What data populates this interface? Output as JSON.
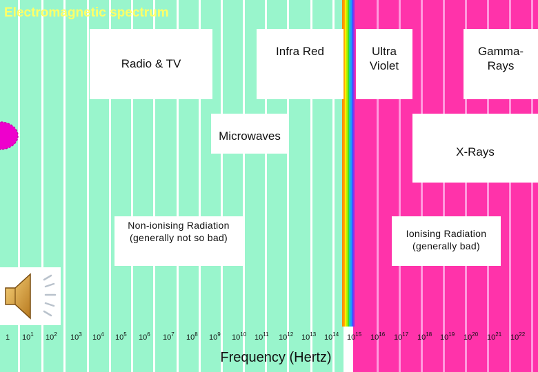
{
  "title": "Electromagnetic spectrum",
  "colors": {
    "background_low": "#99f5cc",
    "stripe_low": "#ffffff",
    "background_high": "#ff33aa",
    "stripe_high": "#ff99dd",
    "title": "#ffff66",
    "blob": "#ee00cc"
  },
  "regions": {
    "radio_tv": [
      "Radio & TV"
    ],
    "infra_red": [
      "Infra Red"
    ],
    "ultra_violet": [
      "Ultra",
      "Violet"
    ],
    "gamma_rays": [
      "Gamma-",
      "Rays"
    ],
    "microwaves": [
      "Microwaves"
    ],
    "x_rays": [
      "X-Rays"
    ]
  },
  "radiation": {
    "non_ionising": [
      "Non-ionising Radiation",
      "(generally not so bad)"
    ],
    "ionising": [
      "Ionising Radiation",
      "(generally bad)"
    ]
  },
  "axis": {
    "ticks": [
      {
        "base": "1",
        "exp": ""
      },
      {
        "base": "10",
        "exp": "1"
      },
      {
        "base": "10",
        "exp": "2"
      },
      {
        "base": "10",
        "exp": "3"
      },
      {
        "base": "10",
        "exp": "4"
      },
      {
        "base": "10",
        "exp": "5"
      },
      {
        "base": "10",
        "exp": "6"
      },
      {
        "base": "10",
        "exp": "7"
      },
      {
        "base": "10",
        "exp": "8"
      },
      {
        "base": "10",
        "exp": "9"
      },
      {
        "base": "10",
        "exp": "10"
      },
      {
        "base": "10",
        "exp": "11"
      },
      {
        "base": "10",
        "exp": "12"
      },
      {
        "base": "10",
        "exp": "13"
      },
      {
        "base": "10",
        "exp": "14"
      },
      {
        "base": "10",
        "exp": "15"
      },
      {
        "base": "10",
        "exp": "16"
      },
      {
        "base": "10",
        "exp": "17"
      },
      {
        "base": "10",
        "exp": "18"
      },
      {
        "base": "10",
        "exp": "19"
      },
      {
        "base": "10",
        "exp": "20"
      },
      {
        "base": "10",
        "exp": "21"
      },
      {
        "base": "10",
        "exp": "22"
      }
    ],
    "label": "Frequency (Hertz)"
  },
  "icons": {
    "speaker": "speaker-sound-icon"
  }
}
